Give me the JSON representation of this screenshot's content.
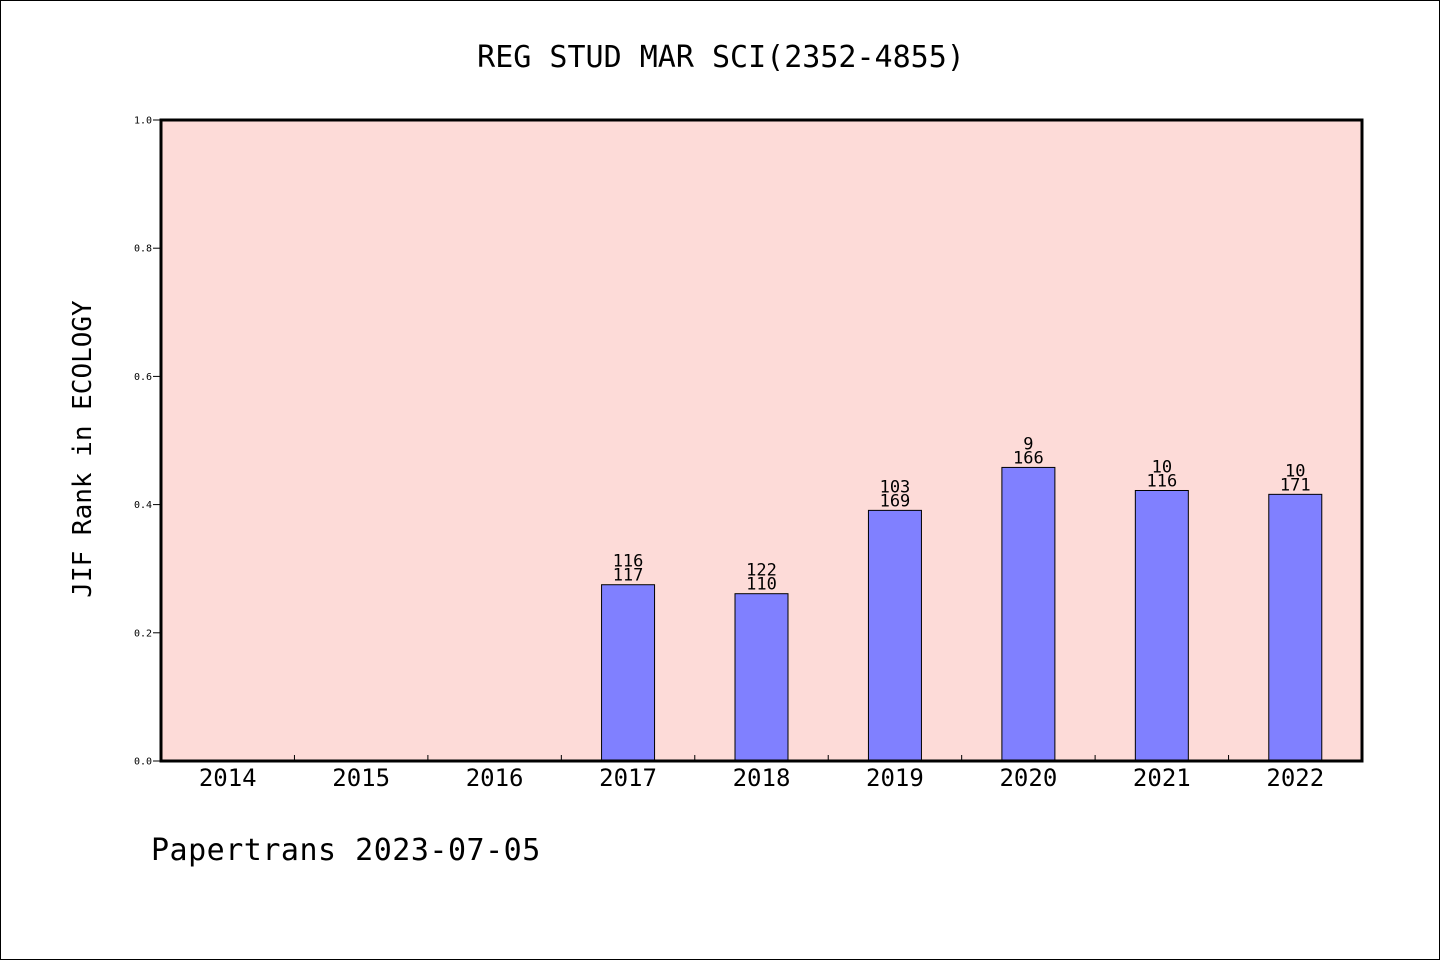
{
  "footer_text": "Papertrans 2023-07-05",
  "chart_data": {
    "type": "bar",
    "title": "REG STUD MAR SCI(2352-4855)",
    "xlabel": "",
    "ylabel": "JIF Rank in ECOLOGY",
    "ylim": [
      0,
      1.0
    ],
    "yticks": [
      "0.0",
      "0.2",
      "0.4",
      "0.6",
      "0.8",
      "1.0"
    ],
    "categories": [
      "2014",
      "2015",
      "2016",
      "2017",
      "2018",
      "2019",
      "2020",
      "2021",
      "2022"
    ],
    "values": [
      null,
      null,
      null,
      0.275,
      0.261,
      0.391,
      0.458,
      0.422,
      0.416
    ],
    "labels_top": [
      "",
      "",
      "",
      "116",
      "122",
      "103",
      "9",
      "10",
      "10"
    ],
    "labels_bottom": [
      "",
      "",
      "",
      "117",
      "110",
      "169",
      "166",
      "116",
      "171"
    ],
    "grid": false,
    "colors": {
      "plot_background": "#fddbd8",
      "bar_fill": "#8080ff",
      "bar_stroke": "#000000"
    }
  }
}
